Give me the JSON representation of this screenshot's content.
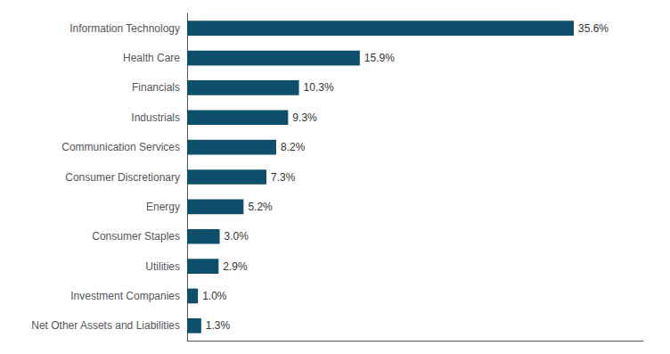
{
  "chart_data": {
    "type": "bar",
    "orientation": "horizontal",
    "categories": [
      "Information Technology",
      "Health Care",
      "Financials",
      "Industrials",
      "Communication Services",
      "Consumer Discretionary",
      "Energy",
      "Consumer Staples",
      "Utilities",
      "Investment Companies",
      "Net Other Assets and Liabilities"
    ],
    "values": [
      35.6,
      15.9,
      10.3,
      9.3,
      8.2,
      7.3,
      5.2,
      3.0,
      2.9,
      1.0,
      1.3
    ],
    "value_labels": [
      "35.6%",
      "15.9%",
      "10.3%",
      "9.3%",
      "8.2%",
      "7.3%",
      "5.2%",
      "3.0%",
      "2.9%",
      "1.0%",
      "1.3%"
    ],
    "color": "#0d4f6b",
    "xlim": [
      0,
      42
    ],
    "data_labels": true,
    "tick_labels": "y",
    "grid": false
  }
}
